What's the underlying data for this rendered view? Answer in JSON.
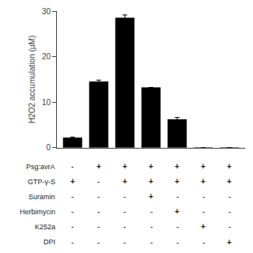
{
  "chart_data": {
    "type": "bar",
    "categories": [
      null,
      null,
      null,
      null,
      null,
      null,
      null
    ],
    "values": [
      2.2,
      14.5,
      28.5,
      13.2,
      6.2,
      0,
      0
    ],
    "errors": [
      0.15,
      0.35,
      0.65,
      0.0,
      0.45,
      0,
      0
    ],
    "color": "black",
    "ylabel": "H2O2 accumulation (μM)",
    "ylim": [
      0,
      30
    ],
    "yticks": [
      0,
      10,
      20,
      30
    ],
    "grid": false,
    "annotations": [
      {
        "label": "Psg:avrA",
        "values": [
          "-",
          "+",
          "+",
          "+",
          "+",
          "+",
          "+"
        ]
      },
      {
        "label": "GTP-γ-S",
        "values": [
          "+",
          "-",
          "+",
          "+",
          "+",
          "+",
          "+"
        ]
      },
      {
        "label": "Suramin",
        "values": [
          "-",
          "-",
          "-",
          "+",
          "-",
          "-",
          "-"
        ]
      },
      {
        "label": "Herbimycin",
        "values": [
          "-",
          "-",
          "-",
          "-",
          "+",
          "-",
          "-"
        ]
      },
      {
        "label": "K252a",
        "values": [
          "-",
          "-",
          "-",
          "-",
          "-",
          "+",
          "-"
        ]
      },
      {
        "label": "DPI",
        "values": [
          "-",
          "-",
          "-",
          "-",
          "-",
          "-",
          "+"
        ]
      }
    ]
  }
}
